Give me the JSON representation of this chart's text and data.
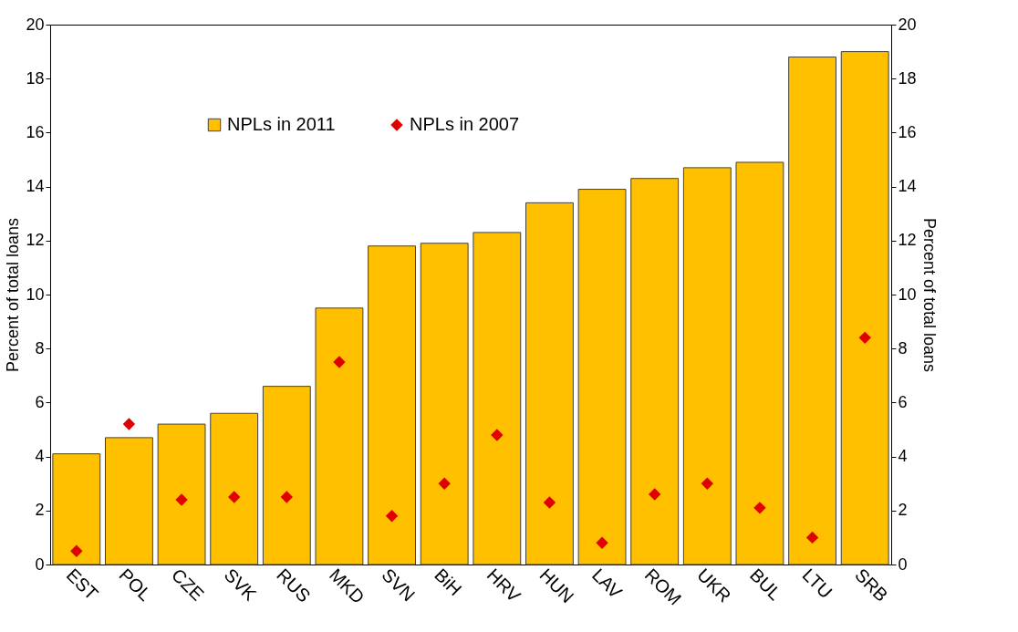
{
  "chart_data": {
    "type": "bar",
    "ylabel": "Percent of total loans",
    "y2label": "Percent of total loans",
    "categories": [
      "EST",
      "POL",
      "CZE",
      "SVK",
      "RUS",
      "MKD",
      "SVN",
      "BiH",
      "HRV",
      "HUN",
      "LAV",
      "ROM",
      "UKR",
      "BUL",
      "LTU",
      "SRB"
    ],
    "series": [
      {
        "name": "NPLs in 2011",
        "color": "#ffc000",
        "values": [
          4.1,
          4.7,
          5.2,
          5.6,
          6.6,
          9.5,
          11.8,
          11.9,
          12.3,
          13.4,
          13.9,
          14.3,
          14.7,
          14.9,
          18.8,
          19.0
        ]
      },
      {
        "name": "NPLs in 2007",
        "type": "scatter",
        "marker": "diamond",
        "color": "#e00000",
        "values": [
          0.5,
          5.2,
          2.4,
          2.5,
          2.5,
          7.5,
          1.8,
          3.0,
          4.8,
          2.3,
          0.8,
          2.6,
          3.0,
          2.1,
          1.0,
          8.4
        ]
      }
    ],
    "ylim": [
      0,
      20
    ],
    "yticks": [
      0,
      2,
      4,
      6,
      8,
      10,
      12,
      14,
      16,
      18,
      20
    ],
    "y2lim": [
      0,
      20
    ],
    "y2ticks": [
      0,
      2,
      4,
      6,
      8,
      10,
      12,
      14,
      16,
      18,
      20
    ],
    "grid": false,
    "legend": "top left"
  }
}
